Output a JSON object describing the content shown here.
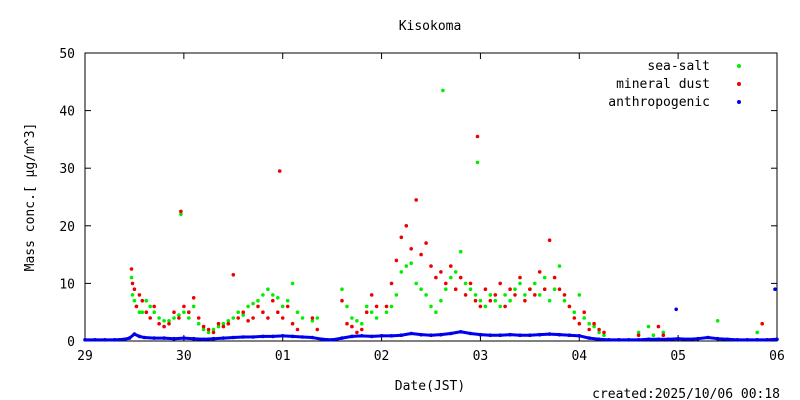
{
  "chart_data": {
    "type": "scatter",
    "title": "Kisokoma",
    "xlabel": "Date(JST)",
    "ylabel": "Mass conc.[ μg/m^3]",
    "footer": "created:2025/10/06 00:18",
    "xlim": [
      0,
      7
    ],
    "ylim": [
      0,
      50
    ],
    "x_ticks": [
      {
        "value": 0,
        "label": "29"
      },
      {
        "value": 1,
        "label": "30"
      },
      {
        "value": 2,
        "label": "01"
      },
      {
        "value": 3,
        "label": "02"
      },
      {
        "value": 4,
        "label": "03"
      },
      {
        "value": 5,
        "label": "04"
      },
      {
        "value": 6,
        "label": "05"
      },
      {
        "value": 7,
        "label": "06"
      }
    ],
    "y_ticks": [
      {
        "value": 0,
        "label": "0"
      },
      {
        "value": 10,
        "label": "10"
      },
      {
        "value": 20,
        "label": "20"
      },
      {
        "value": 30,
        "label": "30"
      },
      {
        "value": 40,
        "label": "40"
      },
      {
        "value": 50,
        "label": "50"
      }
    ],
    "legend_position": "top-right",
    "series": [
      {
        "name": "sea-salt",
        "color": "#00ee00",
        "points": [
          [
            0.47,
            11.0
          ],
          [
            0.48,
            8.0
          ],
          [
            0.5,
            7.0
          ],
          [
            0.52,
            6.0
          ],
          [
            0.55,
            5.0
          ],
          [
            0.58,
            5.0
          ],
          [
            0.62,
            7.0
          ],
          [
            0.66,
            6.0
          ],
          [
            0.7,
            5.0
          ],
          [
            0.75,
            4.0
          ],
          [
            0.8,
            3.5
          ],
          [
            0.85,
            3.5
          ],
          [
            0.9,
            4.0
          ],
          [
            0.95,
            4.5
          ],
          [
            0.97,
            22.0
          ],
          [
            1.0,
            5.0
          ],
          [
            1.05,
            4.0
          ],
          [
            1.1,
            6.0
          ],
          [
            1.15,
            3.0
          ],
          [
            1.2,
            2.0
          ],
          [
            1.25,
            1.5
          ],
          [
            1.3,
            2.0
          ],
          [
            1.35,
            2.5
          ],
          [
            1.4,
            3.0
          ],
          [
            1.45,
            3.5
          ],
          [
            1.5,
            4.0
          ],
          [
            1.55,
            5.0
          ],
          [
            1.6,
            4.5
          ],
          [
            1.65,
            6.0
          ],
          [
            1.7,
            6.5
          ],
          [
            1.75,
            7.0
          ],
          [
            1.8,
            8.0
          ],
          [
            1.85,
            9.0
          ],
          [
            1.9,
            8.0
          ],
          [
            1.95,
            7.5
          ],
          [
            2.0,
            6.0
          ],
          [
            2.05,
            7.0
          ],
          [
            2.1,
            10.0
          ],
          [
            2.15,
            5.0
          ],
          [
            2.2,
            4.0
          ],
          [
            2.3,
            3.5
          ],
          [
            2.35,
            4.0
          ],
          [
            2.6,
            9.0
          ],
          [
            2.65,
            6.0
          ],
          [
            2.7,
            4.0
          ],
          [
            2.75,
            3.5
          ],
          [
            2.8,
            3.0
          ],
          [
            2.85,
            6.0
          ],
          [
            2.9,
            5.0
          ],
          [
            2.95,
            4.0
          ],
          [
            3.05,
            5.0
          ],
          [
            3.1,
            6.0
          ],
          [
            3.15,
            8.0
          ],
          [
            3.2,
            12.0
          ],
          [
            3.25,
            13.0
          ],
          [
            3.3,
            13.5
          ],
          [
            3.35,
            10.0
          ],
          [
            3.4,
            9.0
          ],
          [
            3.45,
            8.0
          ],
          [
            3.5,
            6.0
          ],
          [
            3.55,
            5.0
          ],
          [
            3.6,
            7.0
          ],
          [
            3.62,
            43.5
          ],
          [
            3.65,
            9.0
          ],
          [
            3.7,
            11.0
          ],
          [
            3.75,
            12.0
          ],
          [
            3.8,
            15.5
          ],
          [
            3.85,
            10.0
          ],
          [
            3.9,
            9.0
          ],
          [
            3.95,
            8.0
          ],
          [
            3.97,
            31.0
          ],
          [
            4.0,
            7.0
          ],
          [
            4.05,
            6.0
          ],
          [
            4.1,
            8.0
          ],
          [
            4.15,
            7.0
          ],
          [
            4.2,
            6.0
          ],
          [
            4.25,
            8.0
          ],
          [
            4.3,
            7.0
          ],
          [
            4.35,
            9.0
          ],
          [
            4.4,
            10.0
          ],
          [
            4.45,
            8.0
          ],
          [
            4.5,
            9.0
          ],
          [
            4.55,
            10.0
          ],
          [
            4.6,
            8.0
          ],
          [
            4.65,
            11.0
          ],
          [
            4.7,
            7.0
          ],
          [
            4.75,
            9.0
          ],
          [
            4.8,
            13.0
          ],
          [
            4.85,
            7.0
          ],
          [
            4.9,
            6.0
          ],
          [
            4.95,
            5.0
          ],
          [
            5.0,
            8.0
          ],
          [
            5.05,
            4.0
          ],
          [
            5.1,
            3.0
          ],
          [
            5.15,
            2.5
          ],
          [
            5.2,
            1.5
          ],
          [
            5.25,
            1.0
          ],
          [
            5.6,
            1.5
          ],
          [
            5.7,
            2.5
          ],
          [
            5.75,
            1.0
          ],
          [
            5.85,
            1.5
          ],
          [
            6.4,
            3.5
          ],
          [
            6.8,
            1.5
          ]
        ]
      },
      {
        "name": "mineral dust",
        "color": "#ee0000",
        "points": [
          [
            0.47,
            12.5
          ],
          [
            0.48,
            10.0
          ],
          [
            0.5,
            9.0
          ],
          [
            0.52,
            6.0
          ],
          [
            0.55,
            8.0
          ],
          [
            0.58,
            7.0
          ],
          [
            0.62,
            5.0
          ],
          [
            0.66,
            4.0
          ],
          [
            0.7,
            6.0
          ],
          [
            0.75,
            3.0
          ],
          [
            0.8,
            2.5
          ],
          [
            0.85,
            3.0
          ],
          [
            0.9,
            5.0
          ],
          [
            0.95,
            4.0
          ],
          [
            0.97,
            22.5
          ],
          [
            1.0,
            6.0
          ],
          [
            1.05,
            5.0
          ],
          [
            1.1,
            7.5
          ],
          [
            1.15,
            4.0
          ],
          [
            1.2,
            2.5
          ],
          [
            1.25,
            2.0
          ],
          [
            1.3,
            1.5
          ],
          [
            1.35,
            3.0
          ],
          [
            1.4,
            2.5
          ],
          [
            1.45,
            3.0
          ],
          [
            1.5,
            11.5
          ],
          [
            1.55,
            4.0
          ],
          [
            1.6,
            5.0
          ],
          [
            1.65,
            3.5
          ],
          [
            1.7,
            4.0
          ],
          [
            1.75,
            6.0
          ],
          [
            1.8,
            5.0
          ],
          [
            1.85,
            4.0
          ],
          [
            1.9,
            7.0
          ],
          [
            1.95,
            5.0
          ],
          [
            1.97,
            29.5
          ],
          [
            2.0,
            4.0
          ],
          [
            2.05,
            6.0
          ],
          [
            2.1,
            3.0
          ],
          [
            2.15,
            2.0
          ],
          [
            2.3,
            4.0
          ],
          [
            2.35,
            2.0
          ],
          [
            2.6,
            7.0
          ],
          [
            2.65,
            3.0
          ],
          [
            2.7,
            2.5
          ],
          [
            2.75,
            1.5
          ],
          [
            2.8,
            2.0
          ],
          [
            2.85,
            5.0
          ],
          [
            2.9,
            8.0
          ],
          [
            2.95,
            6.0
          ],
          [
            3.05,
            6.0
          ],
          [
            3.1,
            10.0
          ],
          [
            3.15,
            14.0
          ],
          [
            3.2,
            18.0
          ],
          [
            3.25,
            20.0
          ],
          [
            3.3,
            16.0
          ],
          [
            3.35,
            24.5
          ],
          [
            3.4,
            15.0
          ],
          [
            3.45,
            17.0
          ],
          [
            3.5,
            13.0
          ],
          [
            3.55,
            11.0
          ],
          [
            3.6,
            12.0
          ],
          [
            3.65,
            10.0
          ],
          [
            3.7,
            13.0
          ],
          [
            3.75,
            9.0
          ],
          [
            3.8,
            11.0
          ],
          [
            3.85,
            8.0
          ],
          [
            3.9,
            10.0
          ],
          [
            3.95,
            7.0
          ],
          [
            3.97,
            35.5
          ],
          [
            4.0,
            6.0
          ],
          [
            4.05,
            9.0
          ],
          [
            4.1,
            7.0
          ],
          [
            4.15,
            8.0
          ],
          [
            4.2,
            10.0
          ],
          [
            4.25,
            6.0
          ],
          [
            4.3,
            9.0
          ],
          [
            4.35,
            8.0
          ],
          [
            4.4,
            11.0
          ],
          [
            4.45,
            7.0
          ],
          [
            4.5,
            9.0
          ],
          [
            4.55,
            8.0
          ],
          [
            4.6,
            12.0
          ],
          [
            4.65,
            9.0
          ],
          [
            4.7,
            17.5
          ],
          [
            4.75,
            11.0
          ],
          [
            4.8,
            9.0
          ],
          [
            4.85,
            8.0
          ],
          [
            4.9,
            6.0
          ],
          [
            4.95,
            4.0
          ],
          [
            5.0,
            3.0
          ],
          [
            5.05,
            5.0
          ],
          [
            5.1,
            2.0
          ],
          [
            5.15,
            3.0
          ],
          [
            5.2,
            2.0
          ],
          [
            5.25,
            1.5
          ],
          [
            5.6,
            1.0
          ],
          [
            5.8,
            2.5
          ],
          [
            5.85,
            1.0
          ],
          [
            6.85,
            3.0
          ]
        ]
      },
      {
        "name": "anthropogenic",
        "color": "#0000ee",
        "points": [
          [
            0.0,
            0.2
          ],
          [
            0.1,
            0.2
          ],
          [
            0.2,
            0.2
          ],
          [
            0.3,
            0.2
          ],
          [
            0.4,
            0.3
          ],
          [
            0.45,
            0.5
          ],
          [
            0.5,
            1.2
          ],
          [
            0.55,
            0.8
          ],
          [
            0.6,
            0.6
          ],
          [
            0.7,
            0.5
          ],
          [
            0.8,
            0.5
          ],
          [
            0.9,
            0.4
          ],
          [
            1.0,
            0.5
          ],
          [
            1.1,
            0.4
          ],
          [
            1.2,
            0.3
          ],
          [
            1.3,
            0.4
          ],
          [
            1.4,
            0.5
          ],
          [
            1.5,
            0.6
          ],
          [
            1.6,
            0.7
          ],
          [
            1.7,
            0.7
          ],
          [
            1.8,
            0.8
          ],
          [
            1.9,
            0.8
          ],
          [
            2.0,
            0.9
          ],
          [
            2.1,
            0.8
          ],
          [
            2.2,
            0.7
          ],
          [
            2.3,
            0.6
          ],
          [
            2.4,
            0.3
          ],
          [
            2.5,
            0.2
          ],
          [
            2.6,
            0.5
          ],
          [
            2.7,
            0.8
          ],
          [
            2.8,
            0.9
          ],
          [
            2.9,
            0.8
          ],
          [
            3.0,
            0.9
          ],
          [
            3.1,
            0.9
          ],
          [
            3.2,
            1.0
          ],
          [
            3.3,
            1.3
          ],
          [
            3.4,
            1.1
          ],
          [
            3.5,
            1.0
          ],
          [
            3.6,
            1.1
          ],
          [
            3.7,
            1.3
          ],
          [
            3.8,
            1.6
          ],
          [
            3.9,
            1.3
          ],
          [
            4.0,
            1.1
          ],
          [
            4.1,
            1.0
          ],
          [
            4.2,
            1.0
          ],
          [
            4.3,
            1.1
          ],
          [
            4.4,
            1.0
          ],
          [
            4.5,
            1.0
          ],
          [
            4.6,
            1.1
          ],
          [
            4.7,
            1.2
          ],
          [
            4.8,
            1.1
          ],
          [
            4.9,
            1.0
          ],
          [
            5.0,
            0.9
          ],
          [
            5.1,
            0.5
          ],
          [
            5.2,
            0.3
          ],
          [
            5.3,
            0.2
          ],
          [
            5.4,
            0.2
          ],
          [
            5.5,
            0.2
          ],
          [
            5.6,
            0.2
          ],
          [
            5.7,
            0.3
          ],
          [
            5.8,
            0.3
          ],
          [
            5.9,
            0.3
          ],
          [
            5.98,
            5.5
          ],
          [
            6.0,
            0.4
          ],
          [
            6.1,
            0.3
          ],
          [
            6.2,
            0.4
          ],
          [
            6.3,
            0.6
          ],
          [
            6.4,
            0.4
          ],
          [
            6.5,
            0.3
          ],
          [
            6.6,
            0.2
          ],
          [
            6.7,
            0.2
          ],
          [
            6.8,
            0.2
          ],
          [
            6.9,
            0.2
          ],
          [
            6.98,
            9.0
          ],
          [
            7.0,
            0.3
          ]
        ]
      }
    ]
  }
}
